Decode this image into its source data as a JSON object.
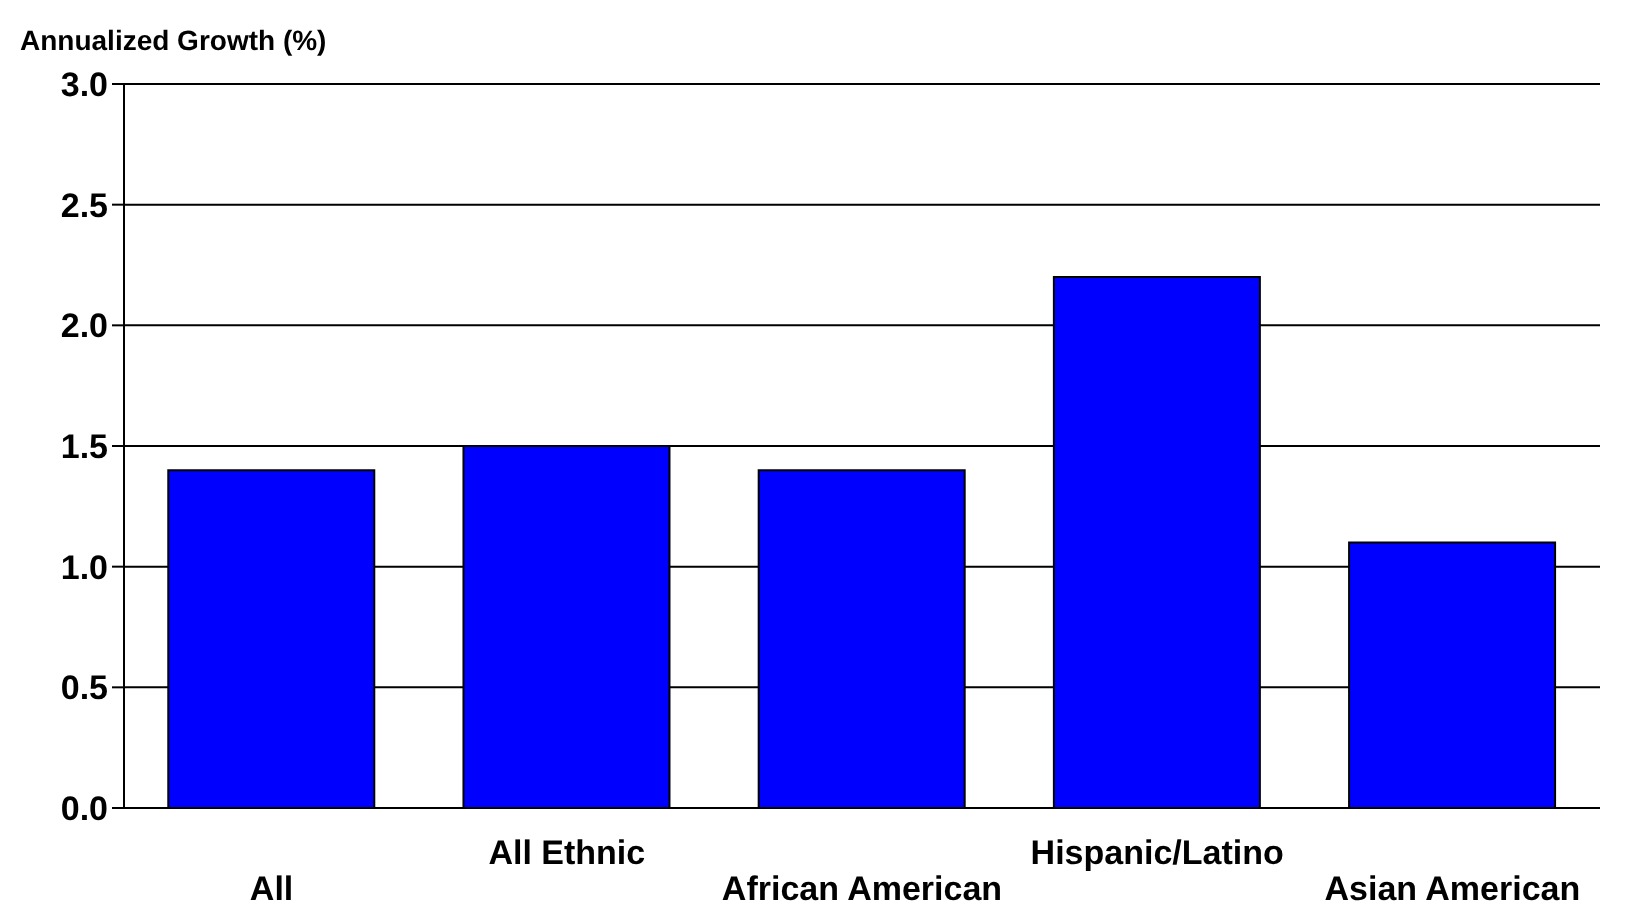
{
  "chart_data": {
    "type": "bar",
    "ylabel": "Annualized Growth (%)",
    "categories": [
      "All",
      "All Ethnic",
      "African American",
      "Hispanic/Latino",
      "Asian American"
    ],
    "values": [
      1.4,
      1.5,
      1.4,
      2.2,
      1.1
    ],
    "color": "#0000ff",
    "ylim": [
      0,
      3
    ],
    "yticks": [
      {
        "value": 0,
        "label": "0.0"
      },
      {
        "value": 0.5,
        "label": "0.5"
      },
      {
        "value": 1,
        "label": "1.0"
      },
      {
        "value": 1.5,
        "label": "1.5"
      },
      {
        "value": 2,
        "label": "2.0"
      },
      {
        "value": 2.5,
        "label": "2.5"
      },
      {
        "value": 3,
        "label": "3.0"
      }
    ],
    "grid": "y"
  }
}
